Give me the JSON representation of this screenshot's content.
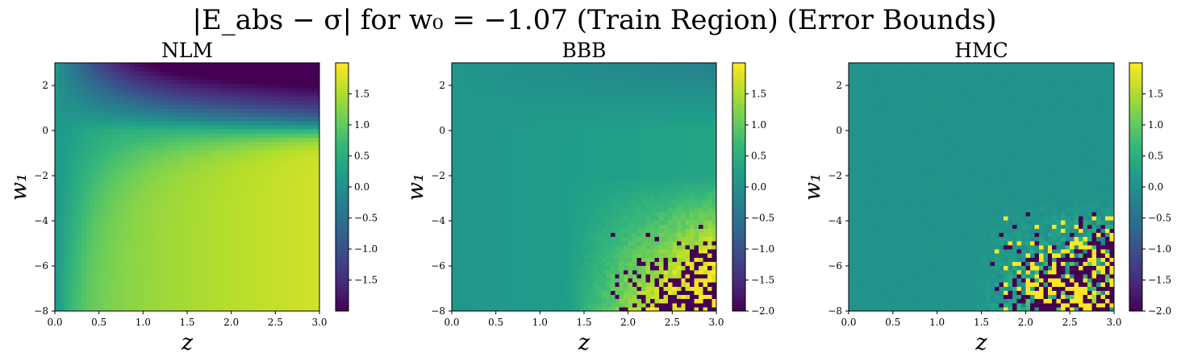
{
  "figure": {
    "title": "|E_abs − σ| for w₀ = −1.07 (Train Region) (Error Bounds)"
  },
  "colors": {
    "colormap": "viridis",
    "stops": [
      "#440154",
      "#482878",
      "#3e4989",
      "#31688e",
      "#26828e",
      "#1f9e89",
      "#35b779",
      "#6ece58",
      "#b5de2b",
      "#fde725"
    ]
  },
  "chart_data": [
    {
      "type": "heatmap",
      "id": "nlm",
      "title": "NLM",
      "xlabel": "z",
      "ylabel": "w₁",
      "xlim": [
        0.0,
        3.0
      ],
      "ylim": [
        -8,
        3
      ],
      "xticks": [
        "0.0",
        "0.5",
        "1.0",
        "1.5",
        "2.0",
        "2.5",
        "3.0"
      ],
      "yticks": [
        "−8",
        "−6",
        "−4",
        "−2",
        "0",
        "2"
      ],
      "color_range": [
        -2.0,
        2.0
      ],
      "colorbar_ticks": [
        "1.5",
        "1.0",
        "0.5",
        "0.0",
        "−0.5",
        "−1.0",
        "−1.5"
      ],
      "colorbar_values": [
        1.5,
        1.0,
        0.5,
        0.0,
        -0.5,
        -1.0,
        -1.5
      ],
      "grid": false
    },
    {
      "type": "heatmap",
      "id": "bbb",
      "title": "BBB",
      "xlabel": "z",
      "ylabel": "w₁",
      "xlim": [
        0.0,
        3.0
      ],
      "ylim": [
        -8,
        3
      ],
      "xticks": [
        "0.0",
        "0.5",
        "1.0",
        "1.5",
        "2.0",
        "2.5",
        "3.0"
      ],
      "yticks": [
        "−8",
        "−6",
        "−4",
        "−2",
        "0",
        "2"
      ],
      "color_range": [
        -2.0,
        2.0
      ],
      "colorbar_ticks": [
        "1.5",
        "1.0",
        "0.5",
        "0.0",
        "−0.5",
        "−1.0",
        "−1.5",
        "−2.0"
      ],
      "colorbar_values": [
        1.5,
        1.0,
        0.5,
        0.0,
        -0.5,
        -1.0,
        -1.5,
        -2.0
      ],
      "grid": false
    },
    {
      "type": "heatmap",
      "id": "hmc",
      "title": "HMC",
      "xlabel": "z",
      "ylabel": "w₁",
      "xlim": [
        0.0,
        3.0
      ],
      "ylim": [
        -8,
        3
      ],
      "xticks": [
        "0.0",
        "0.5",
        "1.0",
        "1.5",
        "2.0",
        "2.5",
        "3.0"
      ],
      "yticks": [
        "−8",
        "−6",
        "−4",
        "−2",
        "0",
        "2"
      ],
      "color_range": [
        -2.0,
        2.0
      ],
      "colorbar_ticks": [
        "1.5",
        "1.0",
        "0.5",
        "0.0",
        "−0.5",
        "−1.0",
        "−1.5",
        "−2.0"
      ],
      "colorbar_values": [
        1.5,
        1.0,
        0.5,
        0.0,
        -0.5,
        -1.0,
        -1.5,
        -2.0
      ],
      "grid": false
    }
  ]
}
